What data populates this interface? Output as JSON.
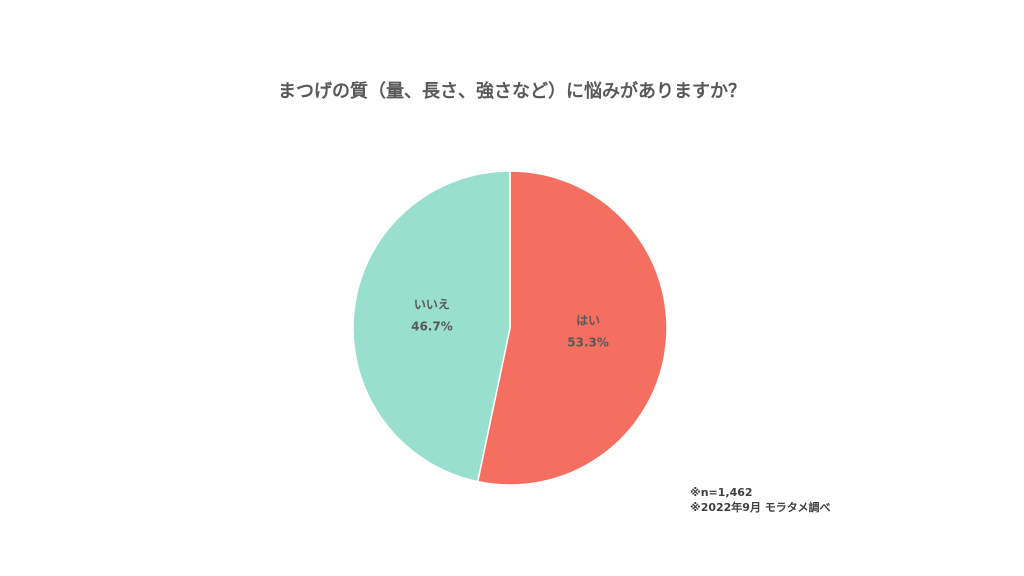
{
  "chart_data": {
    "type": "pie",
    "title": "まつげの質（量、長さ、強さなど）に悩みがありますか？",
    "categories": [
      "はい",
      "いいえ"
    ],
    "values": [
      53.3,
      46.7
    ],
    "value_labels": [
      "53.3%",
      "46.7%"
    ],
    "colors": [
      "#f46f5f",
      "#99dfcd"
    ],
    "notes": [
      "※n=1,462",
      "※2022年9月 モラタメ調べ"
    ]
  }
}
